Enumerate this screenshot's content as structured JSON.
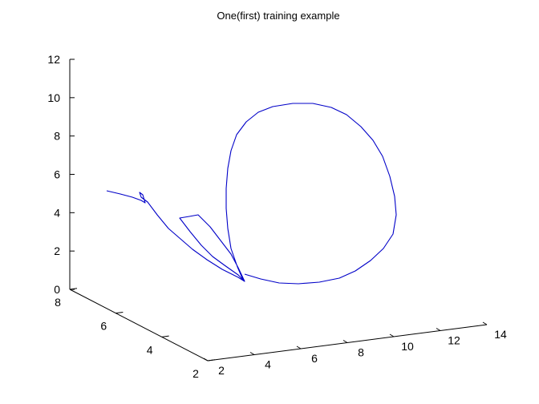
{
  "chart_data": {
    "type": "line",
    "title": "One(first) training example",
    "axes": {
      "x": {
        "ticks": [
          2,
          4,
          6,
          8,
          10,
          12,
          14
        ],
        "range": [
          2,
          14
        ]
      },
      "y": {
        "ticks": [
          2,
          4,
          6,
          8
        ],
        "range": [
          2,
          8
        ]
      },
      "z": {
        "ticks": [
          0,
          2,
          4,
          6,
          8,
          10,
          12
        ],
        "range": [
          0,
          12
        ]
      }
    },
    "grid": false,
    "series": [
      {
        "color": "#0000c8",
        "trajectory_2d_view": [
          [
            133,
            238
          ],
          [
            150,
            242
          ],
          [
            165,
            246
          ],
          [
            176,
            250
          ],
          [
            181,
            253
          ],
          [
            178,
            243
          ],
          [
            174,
            240
          ],
          [
            176,
            246
          ],
          [
            184,
            252
          ],
          [
            196,
            268
          ],
          [
            210,
            285
          ],
          [
            225,
            298
          ],
          [
            240,
            311
          ],
          [
            258,
            324
          ],
          [
            277,
            336
          ],
          [
            297,
            346
          ],
          [
            305,
            351
          ],
          [
            297,
            334
          ],
          [
            288,
            317
          ],
          [
            275,
            300
          ],
          [
            262,
            283
          ],
          [
            247,
            268
          ],
          [
            236,
            270
          ],
          [
            224,
            272
          ],
          [
            237,
            289
          ],
          [
            251,
            306
          ],
          [
            265,
            320
          ],
          [
            280,
            331
          ],
          [
            297,
            343
          ],
          [
            303,
            349
          ],
          [
            296,
            333
          ],
          [
            288,
            310
          ],
          [
            284,
            285
          ],
          [
            282,
            260
          ],
          [
            282,
            235
          ],
          [
            284,
            210
          ],
          [
            288,
            188
          ],
          [
            295,
            168
          ],
          [
            307,
            152
          ],
          [
            322,
            140
          ],
          [
            340,
            133
          ],
          [
            365,
            129
          ],
          [
            390,
            129
          ],
          [
            413,
            134
          ],
          [
            432,
            143
          ],
          [
            450,
            158
          ],
          [
            465,
            175
          ],
          [
            477,
            195
          ],
          [
            486,
            220
          ],
          [
            492,
            245
          ],
          [
            494,
            268
          ],
          [
            490,
            292
          ],
          [
            478,
            310
          ],
          [
            462,
            325
          ],
          [
            443,
            338
          ],
          [
            423,
            347
          ],
          [
            398,
            352
          ],
          [
            372,
            354
          ],
          [
            348,
            353
          ],
          [
            325,
            348
          ],
          [
            305,
            342
          ]
        ]
      }
    ]
  }
}
